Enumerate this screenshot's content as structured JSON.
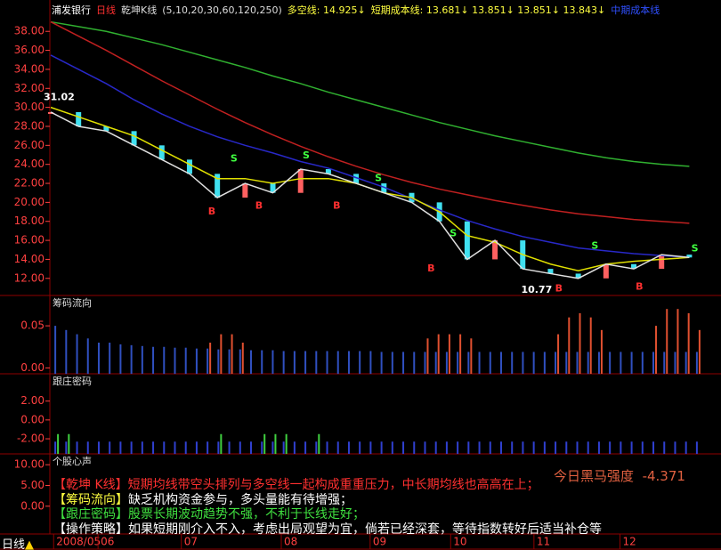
{
  "header": {
    "stock": "浦发银行",
    "period": "日线",
    "indicator": "乾坤K线",
    "params": "(5,10,20,30,60,120,250)",
    "long_short": "多空线: 14.925↓",
    "short_cost": "短期成本线: 13.681↓ 13.851↓ 13.851↓ 13.843↓",
    "mid_cost": "中期成本线"
  },
  "chart_data": [
    {
      "type": "line",
      "x": [
        0,
        10,
        20,
        30,
        40,
        50,
        60,
        70,
        80,
        90,
        100,
        110,
        120,
        130,
        140,
        150,
        160,
        170,
        180,
        190,
        200,
        210,
        220,
        230
      ],
      "xlim": [
        0,
        235
      ],
      "ylim": [
        10.2,
        41.3
      ],
      "yticks": [
        {
          "value": 12,
          "label": "12.00"
        },
        {
          "value": 14,
          "label": "14.00"
        },
        {
          "value": 16,
          "label": "16.00"
        },
        {
          "value": 18,
          "label": "18.00"
        },
        {
          "value": 20,
          "label": "20.00"
        },
        {
          "value": 22,
          "label": "22.00"
        },
        {
          "value": 24,
          "label": "24.00"
        },
        {
          "value": 26,
          "label": "26.00"
        },
        {
          "value": 28,
          "label": "28.00"
        },
        {
          "value": 30,
          "label": "30.00"
        },
        {
          "value": 32,
          "label": "32.00"
        },
        {
          "value": 34,
          "label": "34.00"
        },
        {
          "value": 36,
          "label": "36.00"
        },
        {
          "value": 38,
          "label": "38.00"
        }
      ],
      "xticks": [
        {
          "value": 2,
          "label": "2008/05"
        },
        {
          "value": 18,
          "label": "06"
        },
        {
          "value": 48,
          "label": "07"
        },
        {
          "value": 84,
          "label": "08"
        },
        {
          "value": 116,
          "label": "09"
        },
        {
          "value": 145,
          "label": "10"
        },
        {
          "value": 175,
          "label": "11"
        },
        {
          "value": 206,
          "label": "12"
        }
      ],
      "series": [
        {
          "color": "#30b030",
          "values": [
            39,
            38.5,
            38,
            37.3,
            36.6,
            35.8,
            35,
            34.2,
            33.3,
            32.5,
            31.6,
            30.8,
            30,
            29.2,
            28.4,
            27.7,
            27,
            26.4,
            25.8,
            25.2,
            24.7,
            24.3,
            24.0,
            23.8
          ]
        },
        {
          "color": "#c02020",
          "values": [
            39,
            37.5,
            36,
            34.4,
            32.8,
            31.3,
            29.8,
            28.4,
            27.1,
            25.9,
            24.8,
            23.8,
            22.9,
            22.1,
            21.4,
            20.8,
            20.2,
            19.7,
            19.2,
            18.8,
            18.5,
            18.2,
            18.0,
            17.8
          ]
        },
        {
          "color": "#2828c8",
          "values": [
            35.5,
            34,
            32.5,
            30.8,
            29.3,
            28,
            26.9,
            26,
            25.2,
            24.3,
            23.6,
            22.6,
            21.6,
            20.4,
            19.2,
            18.1,
            17.2,
            16.4,
            15.8,
            15.2,
            14.9,
            14.6,
            14.4,
            14.2
          ]
        },
        {
          "color": "#e0e000",
          "values": [
            30,
            29,
            28,
            27,
            25.5,
            24,
            22.5,
            22.5,
            22,
            22.5,
            22.5,
            22,
            21,
            20.5,
            19,
            16.5,
            15.8,
            14.5,
            13.5,
            12.8,
            13.5,
            13.8,
            14,
            14.2
          ]
        },
        {
          "color": "#e0e0e0",
          "values": [
            29.5,
            28,
            27.5,
            26,
            24.5,
            23,
            20.5,
            22,
            21,
            23.5,
            23,
            22,
            21,
            20,
            18,
            14,
            16,
            13,
            12.5,
            12,
            13.5,
            13,
            14.5,
            14.2
          ]
        }
      ],
      "candles": {
        "up_color": "#ff6060",
        "down_color": "#40e0f0",
        "values": [
          29.5,
          28,
          27.5,
          26,
          24.5,
          23,
          20.5,
          22,
          21,
          23.5,
          23,
          22,
          21,
          20,
          18,
          14,
          16,
          13,
          12.5,
          12,
          13.5,
          13,
          14.5,
          14.2
        ]
      },
      "annotations": [
        {
          "text": "31.02",
          "x": 3,
          "y": 31.02,
          "color": "#ffffff"
        },
        {
          "text": "10.77",
          "x": 175,
          "y": 10.77,
          "color": "#ffffff"
        },
        {
          "text": "S",
          "x": 66,
          "y": 24.6,
          "color": "#40ff40"
        },
        {
          "text": "S",
          "x": 92,
          "y": 24.9,
          "color": "#40ff40"
        },
        {
          "text": "S",
          "x": 118,
          "y": 22.5,
          "color": "#40ff40"
        },
        {
          "text": "S",
          "x": 145,
          "y": 16.7,
          "color": "#40ff40"
        },
        {
          "text": "S",
          "x": 196,
          "y": 15.4,
          "color": "#40ff40"
        },
        {
          "text": "S",
          "x": 232,
          "y": 15.1,
          "color": "#40ff40"
        },
        {
          "text": "B",
          "x": 58,
          "y": 19.0,
          "color": "#ff3030"
        },
        {
          "text": "B",
          "x": 75,
          "y": 19.6,
          "color": "#ff3030"
        },
        {
          "text": "B",
          "x": 103,
          "y": 19.6,
          "color": "#ff3030"
        },
        {
          "text": "B",
          "x": 137,
          "y": 13.0,
          "color": "#ff3030"
        },
        {
          "text": "B",
          "x": 183,
          "y": 10.9,
          "color": "#ff3030"
        },
        {
          "text": "B",
          "x": 212,
          "y": 11.1,
          "color": "#ff3030"
        }
      ]
    },
    {
      "type": "bar",
      "title": "筹码流向",
      "ylim": [
        -0.007,
        0.085
      ],
      "yticks": [
        {
          "value": 0,
          "label": "0.00"
        },
        {
          "value": 0.05,
          "label": "0.05"
        }
      ],
      "series": [
        {
          "color": "#3050c0",
          "values": [
            0.05,
            0.045,
            0.04,
            0.035,
            0.03,
            0.03,
            0.028,
            0.027,
            0.026,
            0.025,
            0.025,
            0.024,
            0.024,
            0.023,
            0.023,
            0.022,
            0.022,
            0.022,
            0.021,
            0.021,
            0.021,
            0.02,
            0.02,
            0.02,
            0.02,
            0.02,
            0.02,
            0.02,
            0.02,
            0.02,
            0.019,
            0.019,
            0.019,
            0.019,
            0.019,
            0.019,
            0.019,
            0.019,
            0.019,
            0.019,
            0.019,
            0.019,
            0.019,
            0.019,
            0.019,
            0.019,
            0.019,
            0.019,
            0.019,
            0.019,
            0.019,
            0.019,
            0.019,
            0.019,
            0.019,
            0.019,
            0.019,
            0.019,
            0.019,
            0.019
          ]
        },
        {
          "color": "#e05030",
          "values": [
            null,
            null,
            null,
            null,
            null,
            null,
            null,
            null,
            null,
            null,
            null,
            null,
            null,
            null,
            0.03,
            0.04,
            0.04,
            0.03,
            null,
            null,
            null,
            null,
            null,
            null,
            null,
            null,
            null,
            null,
            null,
            null,
            null,
            null,
            null,
            null,
            0.035,
            0.04,
            0.04,
            0.04,
            0.035,
            null,
            null,
            null,
            null,
            null,
            null,
            null,
            0.04,
            0.06,
            0.065,
            0.06,
            0.045,
            null,
            null,
            null,
            null,
            0.05,
            0.07,
            0.07,
            0.065,
            0.045
          ]
        }
      ]
    },
    {
      "type": "bar",
      "title": "跟庄密码",
      "ylim": [
        -3.6,
        4.8
      ],
      "yticks": [
        {
          "value": -2,
          "label": "-2.00"
        },
        {
          "value": 0,
          "label": "0.00"
        },
        {
          "value": 2,
          "label": "2.00"
        }
      ],
      "series": [
        {
          "color": "#3040d0",
          "values": [
            -2.3,
            -2.3,
            -2.3,
            -2.3,
            -2.3,
            -2.3,
            -2.3,
            -2.3,
            -2.3,
            -2.3,
            -2.3,
            -2.3,
            -2.3,
            -2.3,
            -2.3,
            -2.3,
            -2.3,
            -2.3,
            -2.3,
            -2.3,
            -2.3,
            -2.3,
            -2.3,
            -2.3,
            -2.3,
            -2.3,
            -2.3,
            -2.3,
            -2.3,
            -2.3,
            -2.3,
            -2.3,
            -2.3,
            -2.3,
            -2.3,
            -2.3,
            -2.3,
            -2.3,
            -2.3,
            -2.3,
            -2.3,
            -2.3,
            -2.3,
            -2.3,
            -2.3,
            -2.3,
            -2.3,
            -2.3,
            -2.3,
            -2.3,
            -2.3,
            -2.3,
            -2.3,
            -2.3,
            -2.3,
            -2.3,
            -2.3,
            -2.3,
            -2.3,
            -2.3
          ]
        },
        {
          "color": "#40d040",
          "values": [
            -1.5,
            -1.5,
            null,
            null,
            null,
            null,
            null,
            null,
            null,
            null,
            null,
            null,
            null,
            null,
            null,
            -1.5,
            null,
            null,
            null,
            -1.5,
            -1.5,
            -1.5,
            null,
            null,
            -1.5,
            null,
            null,
            null,
            null,
            null,
            null,
            null,
            null,
            null,
            null,
            null,
            null,
            null,
            null,
            null,
            null,
            null,
            null,
            null,
            null,
            null,
            null,
            null,
            null,
            null,
            null,
            null,
            null,
            null,
            null,
            null,
            null,
            null,
            null,
            null
          ]
        }
      ]
    },
    {
      "type": "text",
      "title": "个股心声",
      "ylim": [
        -6.7,
        12.4
      ],
      "yticks": [
        {
          "value": 0,
          "label": "0.00"
        },
        {
          "value": 5,
          "label": "5.00"
        },
        {
          "value": 10,
          "label": "10.00"
        }
      ],
      "strength_label": "今日黑马强度",
      "strength_value": "-4.371",
      "lines": [
        {
          "tag": "【乾坤 K线】",
          "text": "短期均线带空头排列与多空线一起构成重重压力，中长期均线也高高在上；",
          "tag_color": "#ff3030",
          "color": "#ff3030"
        },
        {
          "tag": "【筹码流向】",
          "text": "缺乏机构资金参与，多头量能有待增强；",
          "tag_color": "#ffff40",
          "color": "#ffffff"
        },
        {
          "tag": "【跟庄密码】",
          "text": "股票长期波动趋势不强，不利于长线走好；",
          "tag_color": "#40e040",
          "color": "#40e040"
        },
        {
          "tag": "【操作策略】",
          "text": "如果短期刚介入不入，考虑出局观望为宜，倘若已经深套，等待指数转好后适当补仓等",
          "tag_color": "#ffffff",
          "color": "#ffffff"
        }
      ]
    }
  ]
}
